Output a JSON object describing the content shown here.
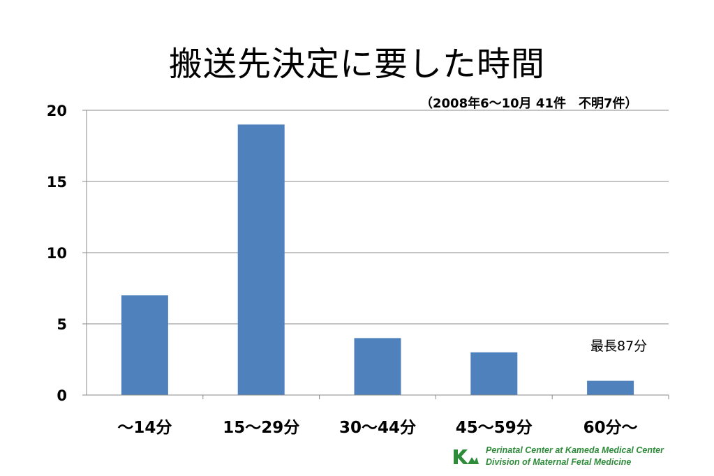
{
  "title": "搬送先決定に要した時間",
  "subtitle": "（2008年6～10月 41件　不明7件）",
  "annotation": "最長87分",
  "footer": {
    "line1": "Perinatal Center at Kameda Medical Center",
    "line2": "Division of Maternal Fetal Medicine",
    "logo_color": "#2e8b3a"
  },
  "chart_data": {
    "type": "bar",
    "categories": [
      "～14分",
      "15～29分",
      "30～44分",
      "45～59分",
      "60分～"
    ],
    "values": [
      7,
      19,
      4,
      3,
      1
    ],
    "yticks": [
      "0",
      "5",
      "10",
      "15",
      "20"
    ],
    "ylim": [
      0,
      20
    ],
    "grid": true,
    "bar_color": "#4f81bd"
  }
}
